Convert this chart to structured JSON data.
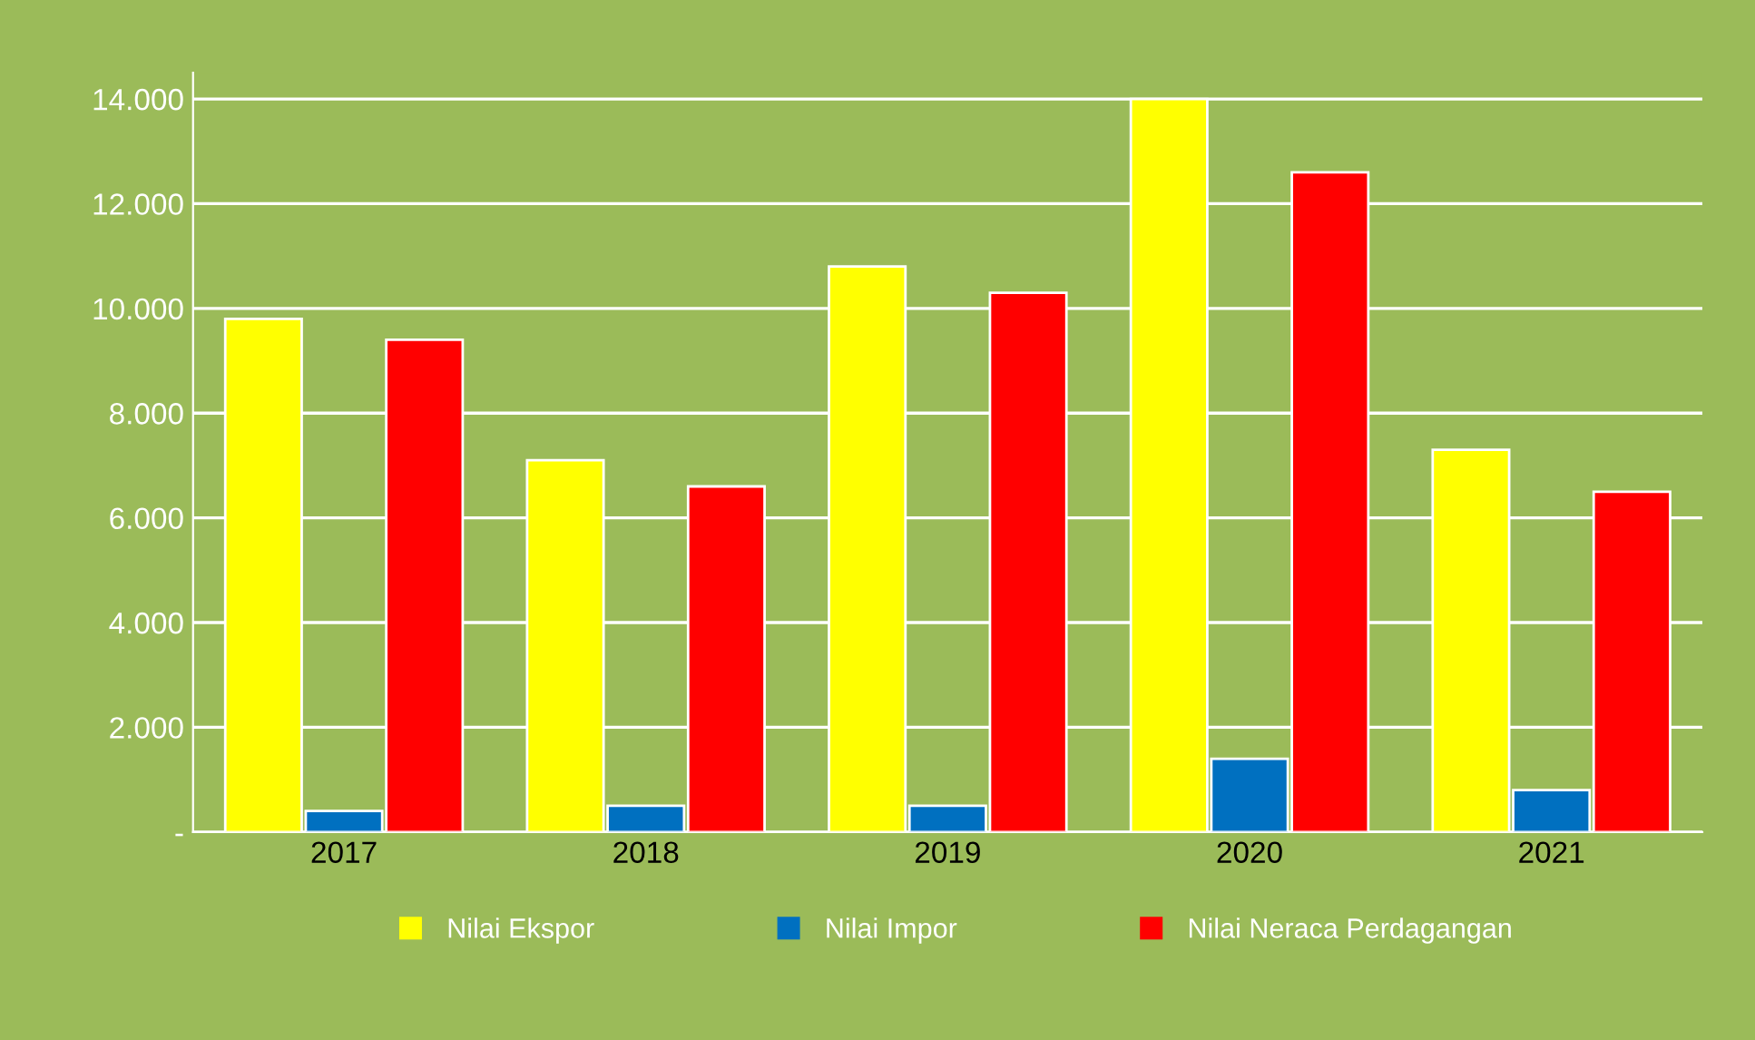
{
  "chart_data": {
    "type": "bar",
    "categories": [
      "2017",
      "2018",
      "2019",
      "2020",
      "2021"
    ],
    "series": [
      {
        "name": "Nilai Ekspor",
        "color": "#ffff00",
        "values": [
          9800,
          7100,
          10800,
          14000,
          7300
        ]
      },
      {
        "name": "Nilai Impor",
        "color": "#0070c0",
        "values": [
          400,
          500,
          500,
          1400,
          800
        ]
      },
      {
        "name": "Nilai Neraca Perdagangan",
        "color": "#ff0000",
        "values": [
          9400,
          6600,
          10300,
          12600,
          6500
        ]
      }
    ],
    "ylim": [
      0,
      14500
    ],
    "yticks": [
      {
        "value": 0,
        "label": "-"
      },
      {
        "value": 2000,
        "label": "2.000"
      },
      {
        "value": 4000,
        "label": "4.000"
      },
      {
        "value": 6000,
        "label": "6.000"
      },
      {
        "value": 8000,
        "label": "8.000"
      },
      {
        "value": 10000,
        "label": "10.000"
      },
      {
        "value": 12000,
        "label": "12.000"
      },
      {
        "value": 14000,
        "label": "14.000"
      }
    ],
    "grid": "y",
    "legend": "bottom"
  }
}
